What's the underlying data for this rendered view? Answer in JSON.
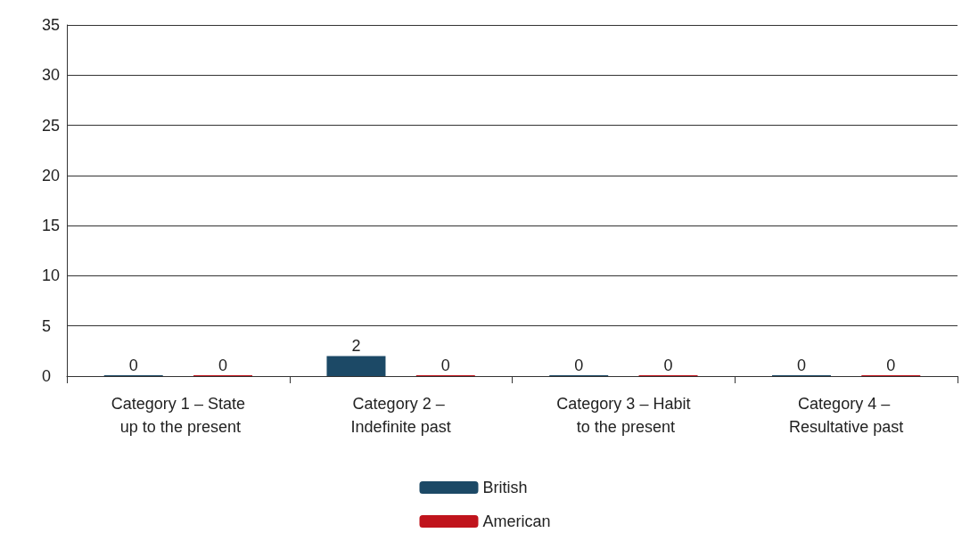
{
  "chart_data": {
    "type": "bar",
    "categories": [
      "Category 1 – State up to the present",
      "Category 2 – Indefinite past",
      "Category 3 – Habit to the present",
      "Category 4 – Resultative past"
    ],
    "series": [
      {
        "name": "British",
        "color": "#1c4966",
        "values": [
          0,
          2,
          0,
          0
        ]
      },
      {
        "name": "American",
        "color": "#c0141c",
        "values": [
          0,
          0,
          0,
          0
        ]
      }
    ],
    "ylim": [
      0,
      35
    ],
    "yticks": [
      0,
      5,
      10,
      15,
      20,
      25,
      30,
      35
    ],
    "grid": "y",
    "legend": "bottom",
    "data_labels": true
  }
}
